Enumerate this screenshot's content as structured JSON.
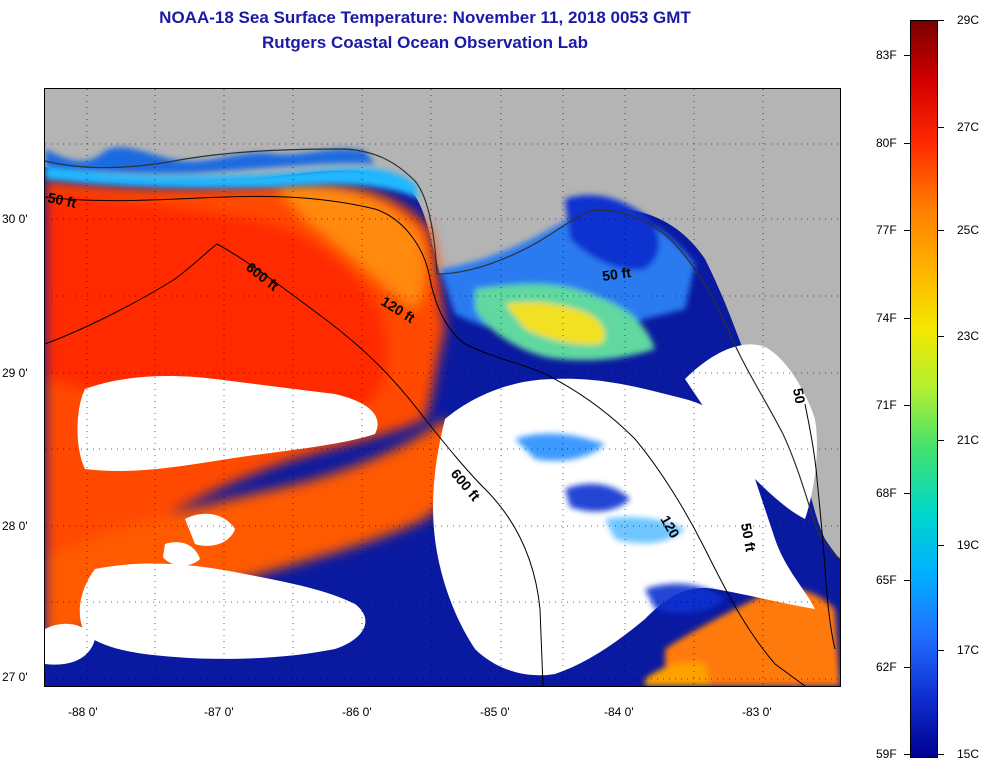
{
  "title_line1": "NOAA-18 Sea Surface Temperature:  November 11, 2018 0053 GMT",
  "title_line2": "Rutgers Coastal Ocean Observation Lab",
  "map": {
    "lat_labels": [
      "30 0'",
      "29 0'",
      "28 0'",
      "27 0'"
    ],
    "lon_labels": [
      "-88 0'",
      "-87 0'",
      "-86 0'",
      "-85 0'",
      "-84 0'",
      "-83 0'"
    ],
    "contour_labels": [
      "50 ft",
      "600 ft",
      "120 ft",
      "50 ft",
      "600 ft",
      "120",
      "50 ft",
      "50"
    ],
    "land_color": "#b4b4b4",
    "cloud_color": "#ffffff"
  },
  "colorbar": {
    "min_f": "59F",
    "max_f": "",
    "fahrenheit_labels": [
      "83F",
      "80F",
      "77F",
      "74F",
      "71F",
      "68F",
      "65F",
      "62F",
      "59F"
    ],
    "celsius_labels": [
      "29C",
      "27C",
      "25C",
      "23C",
      "21C",
      "19C",
      "17C",
      "15C"
    ],
    "gradient_colors": [
      "#7a0000",
      "#d40000",
      "#ff2a00",
      "#ff7a00",
      "#ffb000",
      "#f5e800",
      "#b0f030",
      "#40e070",
      "#00d8c8",
      "#00b0ff",
      "#2070ff",
      "#1030d0",
      "#000090"
    ]
  }
}
